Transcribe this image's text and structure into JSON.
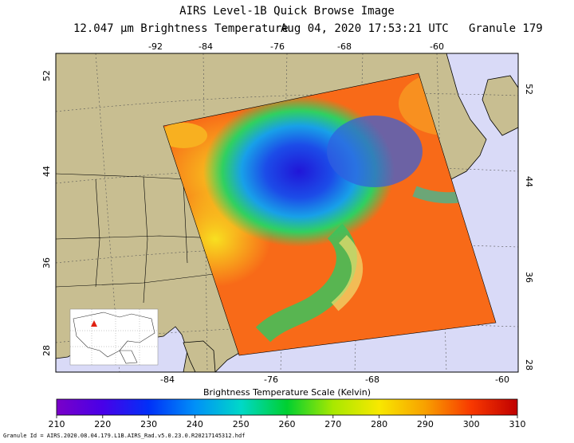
{
  "header": {
    "title": "AIRS Level-1B Quick Browse Image",
    "subtitle_left": "12.047 µm Brightness Temperature",
    "subtitle_right": "Aug 04, 2020 17:53:21 UTC   Granule 179"
  },
  "map": {
    "lon_ticks_top": [
      "-92",
      "-84",
      "-76",
      "-68",
      "-60"
    ],
    "lon_ticks_bottom": [
      "-84",
      "-76",
      "-68",
      "-60"
    ],
    "lat_ticks_left": [
      "52",
      "44",
      "36",
      "28"
    ],
    "lat_ticks_right": [
      "52",
      "44",
      "36",
      "28"
    ],
    "colors": {
      "ocean": "#d9daf7",
      "land": "#c8be91",
      "frame": "#000000"
    }
  },
  "colorbar": {
    "title": "Brightness Temperature Scale (Kelvin)",
    "ticks": [
      "210",
      "220",
      "230",
      "240",
      "250",
      "260",
      "270",
      "280",
      "290",
      "300",
      "310"
    ],
    "min": 210,
    "max": 310
  },
  "footer": {
    "granule_id": "Granule Id = AIRS.2020.08.04.179.L1B.AIRS_Rad.v5.0.23.0.R20217145312.hdf"
  }
}
